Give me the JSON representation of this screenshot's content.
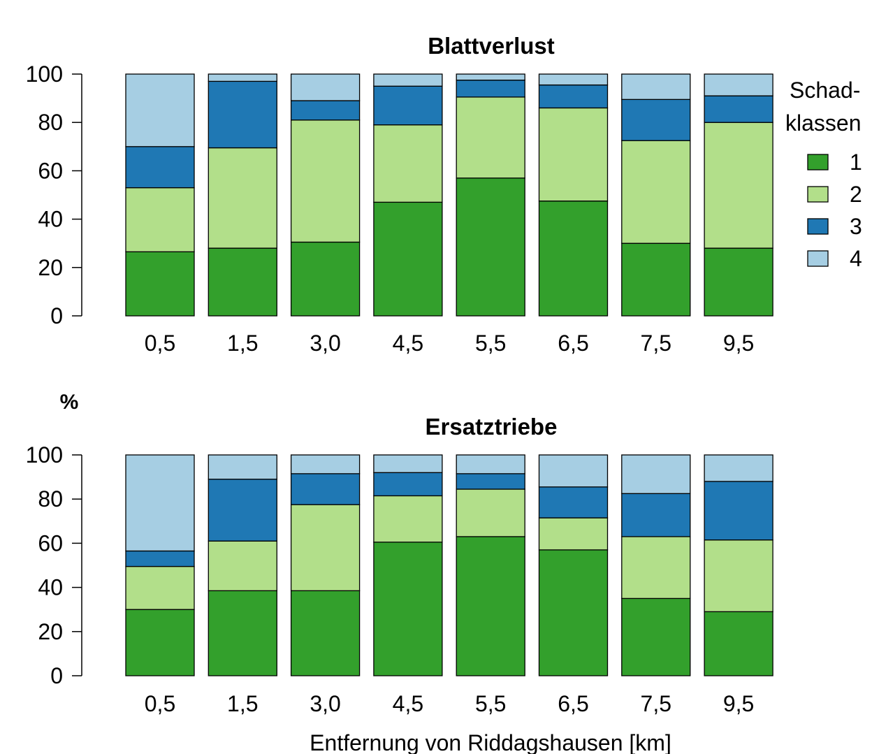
{
  "ylabel": "%",
  "xlabel": "Entfernung von Riddagshausen [km]",
  "legend": {
    "title_line1": "Schad-",
    "title_line2": "klassen",
    "placement": "right",
    "items": [
      {
        "label": "1",
        "color": "#33a02c"
      },
      {
        "label": "2",
        "color": "#b2df8a"
      },
      {
        "label": "3",
        "color": "#1f78b4"
      },
      {
        "label": "4",
        "color": "#a6cee3"
      }
    ]
  },
  "chart_data": [
    {
      "type": "bar",
      "stacked": true,
      "title": "Blattverlust",
      "categories": [
        "0,5",
        "1,5",
        "3,0",
        "4,5",
        "5,5",
        "6,5",
        "7,5",
        "9,5"
      ],
      "ylim": [
        0,
        100
      ],
      "yticks": [
        0,
        20,
        40,
        60,
        80,
        100
      ],
      "series": [
        {
          "name": "1",
          "color": "#33a02c",
          "values": [
            26.5,
            28,
            30.5,
            47,
            57,
            47.5,
            30,
            28
          ]
        },
        {
          "name": "2",
          "color": "#b2df8a",
          "values": [
            26.5,
            41.5,
            50.5,
            32,
            33.5,
            38.5,
            42.5,
            52
          ]
        },
        {
          "name": "3",
          "color": "#1f78b4",
          "values": [
            17,
            27.5,
            8,
            16,
            7,
            9.5,
            17,
            11
          ]
        },
        {
          "name": "4",
          "color": "#a6cee3",
          "values": [
            30,
            3,
            11,
            5,
            2.5,
            4.5,
            10.5,
            9
          ]
        }
      ]
    },
    {
      "type": "bar",
      "stacked": true,
      "title": "Ersatztriebe",
      "categories": [
        "0,5",
        "1,5",
        "3,0",
        "4,5",
        "5,5",
        "6,5",
        "7,5",
        "9,5"
      ],
      "ylim": [
        0,
        100
      ],
      "yticks": [
        0,
        20,
        40,
        60,
        80,
        100
      ],
      "series": [
        {
          "name": "1",
          "color": "#33a02c",
          "values": [
            30,
            38.5,
            38.5,
            60.5,
            63,
            57,
            35,
            29
          ]
        },
        {
          "name": "2",
          "color": "#b2df8a",
          "values": [
            19.5,
            22.5,
            39,
            21,
            21.5,
            14.5,
            28,
            32.5
          ]
        },
        {
          "name": "3",
          "color": "#1f78b4",
          "values": [
            7,
            28,
            14,
            10.5,
            7,
            14,
            19.5,
            26.5
          ]
        },
        {
          "name": "4",
          "color": "#a6cee3",
          "values": [
            43.5,
            11,
            8.5,
            8,
            8.5,
            14.5,
            17.5,
            12
          ]
        }
      ]
    }
  ]
}
